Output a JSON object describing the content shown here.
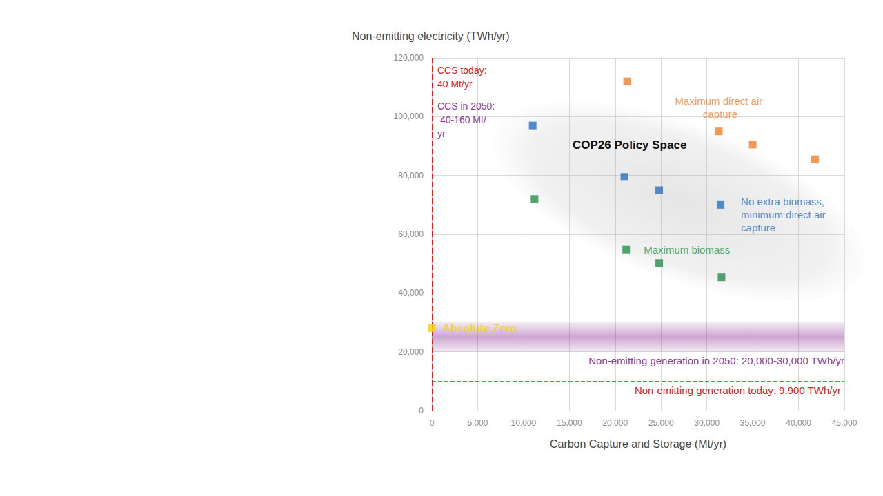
{
  "chart_data": {
    "type": "scatter",
    "x_label": "Carbon Capture and Storage (Mt/yr)",
    "y_label": "Non-emitting electricity (TWh/yr)",
    "xlim": [
      0,
      45000
    ],
    "xticks": [
      0,
      {
        "value": 5000,
        "label": "5,000"
      },
      {
        "value": 10000,
        "label": "10,000"
      },
      {
        "value": 15000,
        "label": "15,000"
      },
      {
        "value": 20000,
        "label": "20,000"
      },
      {
        "value": 25000,
        "label": "25,000"
      },
      {
        "value": 30000,
        "label": "30,000"
      },
      {
        "value": 35000,
        "label": "35,000"
      },
      {
        "value": 40000,
        "label": "40,000"
      },
      {
        "value": 45000,
        "label": "45,000"
      }
    ],
    "ylim": [
      0,
      120000
    ],
    "yticks": [
      0,
      {
        "value": 20000,
        "label": "20,000"
      },
      {
        "value": 40000,
        "label": "40,000"
      },
      {
        "value": 60000,
        "label": "60,000"
      },
      {
        "value": 80000,
        "label": "80,000"
      },
      {
        "value": 100000,
        "label": "100,000"
      },
      {
        "value": 120000,
        "label": "120,000"
      }
    ],
    "grid": true,
    "series": [
      {
        "name": "Maximum direct air capture",
        "color": "#f07f2e",
        "marker": "square",
        "x": [
          21300,
          31300,
          35000,
          41800
        ],
        "values": [
          112000,
          95000,
          90500,
          85500
        ]
      },
      {
        "name": "No extra biomass, minimum direct air capture",
        "color": "#2a6fc0",
        "marker": "square",
        "x": [
          11000,
          21000,
          24800,
          31500
        ],
        "values": [
          97000,
          79500,
          75000,
          70000
        ]
      },
      {
        "name": "Maximum biomass",
        "color": "#24914a",
        "marker": "square",
        "x": [
          11200,
          21200,
          24800,
          31600
        ],
        "values": [
          72000,
          54800,
          50200,
          45300
        ]
      },
      {
        "name": "Absolute Zero",
        "color": "#f2d600",
        "marker": "square",
        "x": [
          0
        ],
        "values": [
          28000
        ]
      }
    ],
    "reference_lines": [
      {
        "axis": "y",
        "value": 9900,
        "label": "Non-emitting generation today: 9,900 TWh/yr",
        "color": "#e0201b",
        "line_style": "dashed"
      },
      {
        "axis": "x",
        "value": 40,
        "label": "CCS today: 40 Mt/yr",
        "color": "#e0201b",
        "line_style": "dashed"
      }
    ],
    "bands": [
      {
        "axis": "y",
        "from": 20000,
        "to": 30000,
        "label": "Non-emitting generation in 2050: 20,000-30,000 TWh/yr",
        "color": "#8e3a96"
      },
      {
        "axis": "x",
        "from": 40,
        "to": 160,
        "label": "CCS in 2050: 40-160 Mt/yr",
        "color": "#8e3a96"
      }
    ],
    "annotations": [
      {
        "text": "COP26 Policy Space"
      }
    ]
  }
}
